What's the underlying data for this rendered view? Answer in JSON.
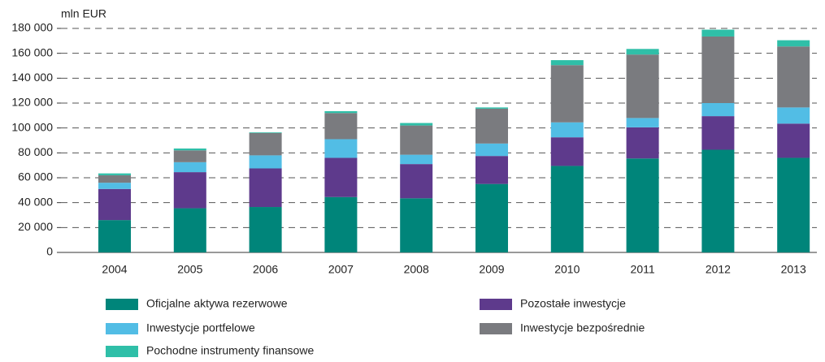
{
  "chart_data": {
    "type": "stacked_bar",
    "y_axis_label": "mln EUR",
    "categories": [
      "2004",
      "2005",
      "2006",
      "2007",
      "2008",
      "2009",
      "2010",
      "2011",
      "2012",
      "2013"
    ],
    "series": [
      {
        "name": "Oficjalne aktywa rezerwowe",
        "color": "#00857a",
        "values": [
          26000,
          35500,
          36500,
          44500,
          43500,
          55000,
          69500,
          75500,
          82500,
          76000
        ]
      },
      {
        "name": "Pozostałe inwestycje",
        "color": "#5e3a8c",
        "values": [
          25000,
          29000,
          31000,
          31500,
          27500,
          22500,
          23000,
          25000,
          27000,
          27500
        ]
      },
      {
        "name": "Inwestycje portfelowe",
        "color": "#52bde5",
        "values": [
          5000,
          8000,
          10500,
          15000,
          7500,
          10000,
          12000,
          7500,
          10500,
          13000
        ]
      },
      {
        "name": "Inwestycje bezpośrednie",
        "color": "#7a7b7f",
        "values": [
          6000,
          9500,
          18000,
          21000,
          23500,
          28000,
          46000,
          51000,
          53500,
          49000
        ]
      },
      {
        "name": "Pochodne instrumenty finansowe",
        "color": "#2fbfa8",
        "values": [
          1500,
          1500,
          500,
          1500,
          2000,
          1000,
          4000,
          4500,
          5500,
          5000
        ]
      }
    ],
    "ylim": [
      0,
      180000
    ],
    "yticks": [
      0,
      {
        "value": 20000,
        "label": "20 000"
      },
      {
        "value": 40000,
        "label": "40 000"
      },
      {
        "value": 60000,
        "label": "60 000"
      },
      {
        "value": 80000,
        "label": "80 000"
      },
      {
        "value": 100000,
        "label": "100 000"
      },
      {
        "value": 120000,
        "label": "120 000"
      },
      {
        "value": 140000,
        "label": "140 000"
      },
      {
        "value": 160000,
        "label": "160 000"
      },
      {
        "value": 180000,
        "label": "180 000"
      }
    ],
    "grid": true
  }
}
